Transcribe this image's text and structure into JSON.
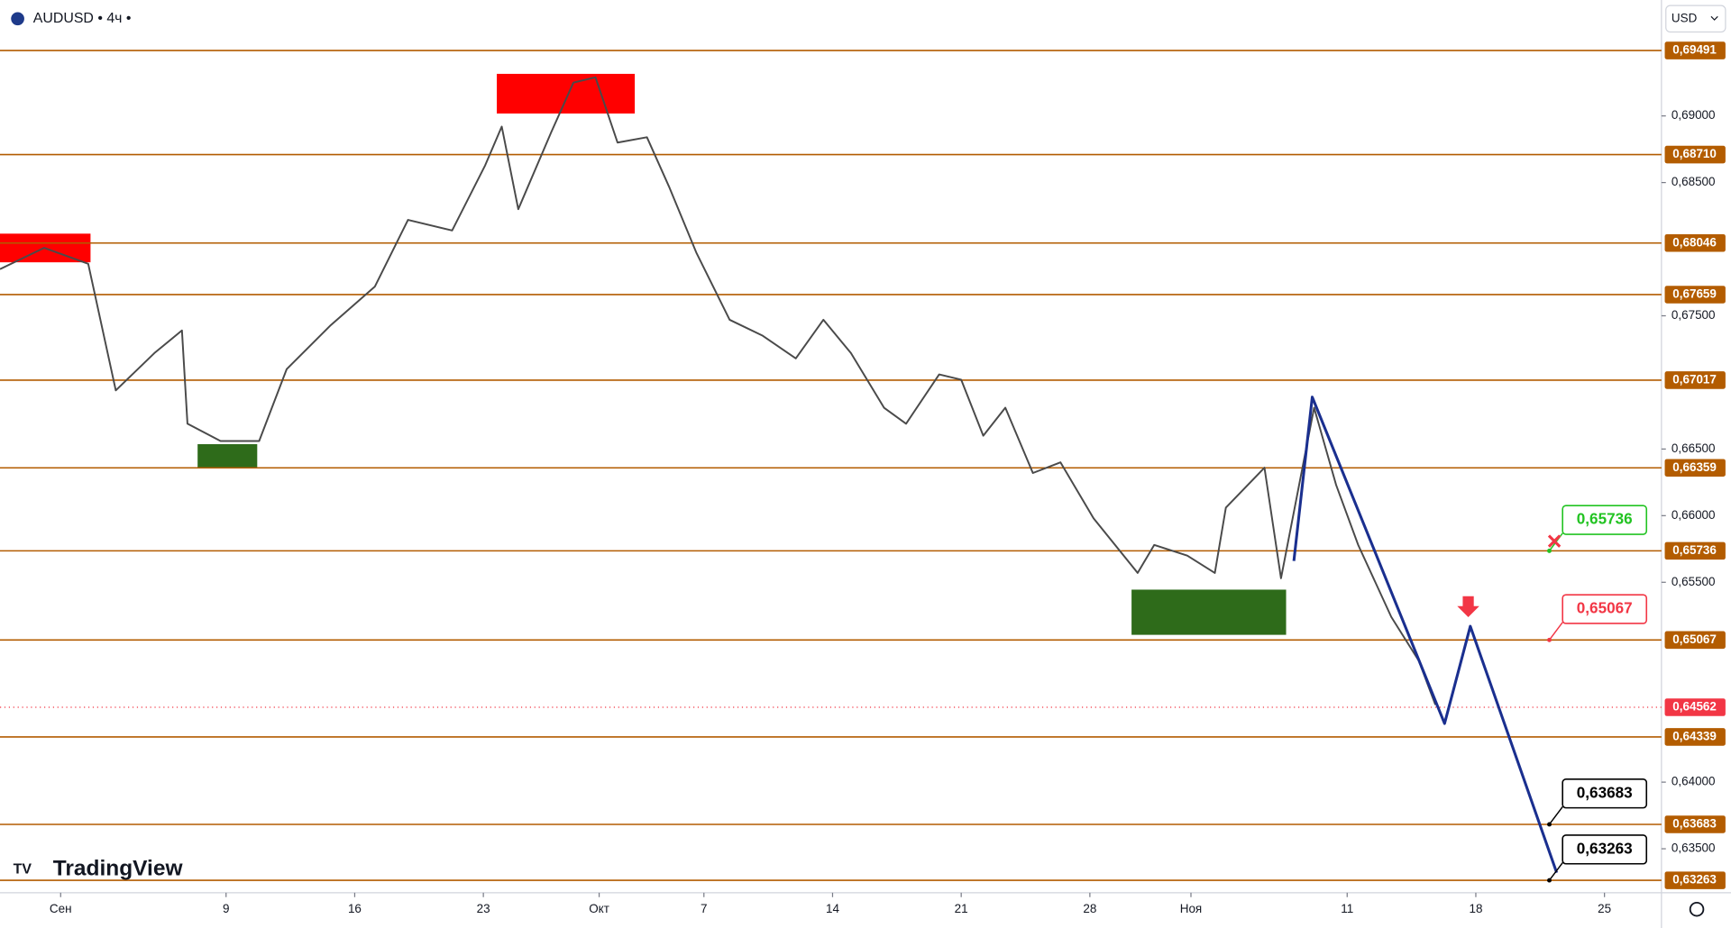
{
  "header": {
    "symbol": "AUDUSD • 4ч •",
    "currency": "USD",
    "brand": "TradingView"
  },
  "chart_data": {
    "type": "line",
    "x": [
      -3.3,
      -0.9,
      1.5,
      3.0,
      5.1,
      6.6,
      6.9,
      8.7,
      10.8,
      12.3,
      14.7,
      17.1,
      18.9,
      21.3,
      23.1,
      24.0,
      24.9,
      26.7,
      27.9,
      29.1,
      30.3,
      31.9,
      33.1,
      34.6,
      36.4,
      38.2,
      40.0,
      41.5,
      43.0,
      44.8,
      46.0,
      47.8,
      49.0,
      50.2,
      51.4,
      52.9,
      54.4,
      56.2,
      58.6,
      59.5,
      61.3,
      62.8,
      63.4,
      65.5,
      66.4,
      68.2,
      69.4,
      70.6,
      72.4,
      73.9,
      74.8
    ],
    "values": [
      0.6785,
      0.6801,
      0.6789,
      0.6694,
      0.6722,
      0.6739,
      0.6669,
      0.6656,
      0.6656,
      0.671,
      0.6743,
      0.6772,
      0.6822,
      0.6814,
      0.6863,
      0.6892,
      0.683,
      0.6888,
      0.6925,
      0.6929,
      0.688,
      0.6884,
      0.6847,
      0.6797,
      0.6747,
      0.6735,
      0.6718,
      0.6747,
      0.6722,
      0.6681,
      0.6669,
      0.6706,
      0.6702,
      0.666,
      0.6681,
      0.6632,
      0.664,
      0.6598,
      0.6557,
      0.6578,
      0.657,
      0.6557,
      0.6606,
      0.6636,
      0.6553,
      0.6681,
      0.6623,
      0.6578,
      0.6524,
      0.6491,
      0.6458
    ],
    "color": "#4a4a4a",
    "projection": {
      "x": [
        67.1,
        68.1,
        75.3,
        76.7,
        81.4
      ],
      "values": [
        0.6566,
        0.6689,
        0.6444,
        0.6517,
        0.6332
      ],
      "color": "#1a2f8f"
    },
    "levels": [
      {
        "value": 0.69491,
        "label": "0,69491"
      },
      {
        "value": 0.6871,
        "label": "0,68710"
      },
      {
        "value": 0.68046,
        "label": "0,68046"
      },
      {
        "value": 0.67659,
        "label": "0,67659"
      },
      {
        "value": 0.67017,
        "label": "0,67017"
      },
      {
        "value": 0.66359,
        "label": "0,66359"
      },
      {
        "value": 0.65736,
        "label": "0,65736"
      },
      {
        "value": 0.65067,
        "label": "0,65067"
      },
      {
        "value": 0.64339,
        "label": "0,64339"
      },
      {
        "value": 0.63683,
        "label": "0,63683"
      },
      {
        "value": 0.63263,
        "label": "0,63263"
      }
    ],
    "level_color": "#b35c00",
    "current_price": {
      "value": 0.64562,
      "label": "0,64562",
      "color": "#f23645"
    },
    "callouts": [
      {
        "x": 81.0,
        "value": 0.65736,
        "label": "0,65736",
        "color": "#22c322"
      },
      {
        "x": 81.0,
        "value": 0.65067,
        "label": "0,65067",
        "color": "#f23645"
      },
      {
        "x": 81.0,
        "value": 0.63683,
        "label": "0,63683",
        "color": "#000000"
      },
      {
        "x": 81.0,
        "value": 0.63263,
        "label": "0,63263",
        "color": "#000000"
      }
    ],
    "xlim": [
      -3.3,
      87.1
    ],
    "ylim": [
      0.6317,
      0.6987
    ],
    "xticks": [
      {
        "value": 0,
        "label": "Сен"
      },
      9.0,
      16.0,
      23.0,
      {
        "value": 29.3,
        "label": "Окт"
      },
      {
        "value": 35,
        "label": "7"
      },
      {
        "value": 42,
        "label": "14"
      },
      {
        "value": 49,
        "label": "21"
      },
      {
        "value": 56,
        "label": "28"
      },
      {
        "value": 61.5,
        "label": "Ноя"
      },
      {
        "value": 70,
        "label": "11"
      },
      {
        "value": 77,
        "label": "18"
      },
      {
        "value": 84,
        "label": "25"
      }
    ],
    "yticks": [
      {
        "value": 0.69,
        "label": "0,69000"
      },
      {
        "value": 0.685,
        "label": "0,68500"
      },
      {
        "value": 0.675,
        "label": "0,67500"
      },
      {
        "value": 0.665,
        "label": "0,66500"
      },
      {
        "value": 0.66,
        "label": "0,66000"
      },
      {
        "value": 0.655,
        "label": "0,65500"
      },
      {
        "value": 0.64,
        "label": "0,64000"
      },
      {
        "value": 0.635,
        "label": "0,63500"
      }
    ]
  }
}
